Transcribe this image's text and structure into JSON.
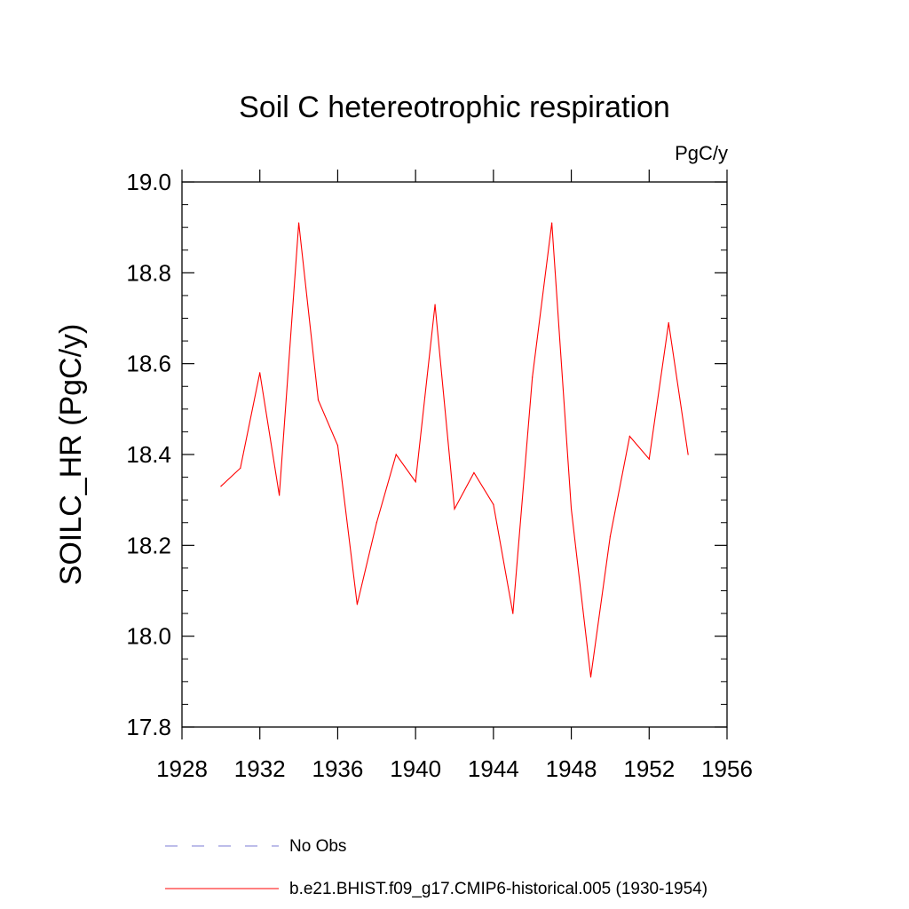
{
  "chart_data": {
    "type": "line",
    "title": "Soil C hetereotrophic respiration",
    "units_label": "PgC/y",
    "xlabel": "",
    "ylabel": "SOILC_HR  (PgC/y)",
    "xlim": [
      1928,
      1956
    ],
    "ylim": [
      17.8,
      19.0
    ],
    "x_ticks": [
      "1928",
      "1932",
      "1936",
      "1940",
      "1944",
      "1948",
      "1952",
      "1956"
    ],
    "y_ticks": [
      "17.8",
      "18.0",
      "18.2",
      "18.4",
      "18.6",
      "18.8",
      "19.0"
    ],
    "grid": false,
    "legend_position": "bottom",
    "series": [
      {
        "name": "b.e21.BHIST.f09_g17.CMIP6-historical.005 (1930-1954)",
        "color": "#ff0000",
        "dash": "solid",
        "x": [
          1930,
          1931,
          1932,
          1933,
          1934,
          1935,
          1936,
          1937,
          1938,
          1939,
          1940,
          1941,
          1942,
          1943,
          1944,
          1945,
          1946,
          1947,
          1948,
          1949,
          1950,
          1951,
          1952,
          1953,
          1954
        ],
        "values": [
          18.33,
          18.37,
          18.58,
          18.31,
          18.91,
          18.52,
          18.42,
          18.07,
          18.25,
          18.4,
          18.34,
          18.73,
          18.28,
          18.36,
          18.29,
          18.05,
          18.57,
          18.91,
          18.28,
          17.91,
          18.22,
          18.44,
          18.39,
          18.69,
          18.4
        ]
      }
    ],
    "legend": [
      {
        "label": "No Obs",
        "color": "#7b7bd6",
        "dash": "dashed"
      },
      {
        "label": "b.e21.BHIST.f09_g17.CMIP6-historical.005 (1930-1954)",
        "color": "#ff0000",
        "dash": "solid"
      }
    ]
  }
}
